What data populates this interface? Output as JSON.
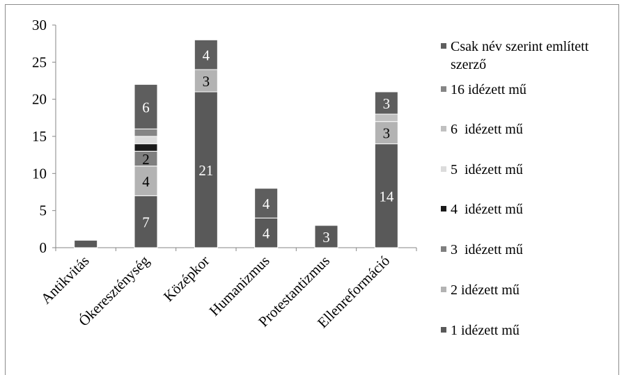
{
  "chart_data": {
    "type": "bar",
    "stacked": true,
    "categories": [
      "Antikvitás",
      "Ókereszténység",
      "Középkor",
      "Humanizmus",
      "Protestantizmus",
      "Ellenreformáció"
    ],
    "series": [
      {
        "name": "1 idézett mű",
        "color": "#595959",
        "values": [
          1,
          7,
          21,
          4,
          3,
          14
        ],
        "labels": [
          "",
          "7",
          "21",
          "4",
          "3",
          "14"
        ]
      },
      {
        "name": "2 idézett mű",
        "color": "#b3b3b3",
        "values": [
          0,
          4,
          3,
          0,
          0,
          3
        ],
        "labels": [
          "",
          "4",
          "3",
          "",
          "",
          "3"
        ]
      },
      {
        "name": "3  idézett mű",
        "color": "#7f7f7f",
        "values": [
          0,
          2,
          0,
          0,
          0,
          0
        ],
        "labels": [
          "",
          "2",
          "",
          "",
          "",
          ""
        ]
      },
      {
        "name": "4  idézett mű",
        "color": "#1a1a1a",
        "values": [
          0,
          1,
          0,
          0,
          0,
          0
        ],
        "labels": [
          "",
          "",
          "",
          "",
          "",
          ""
        ]
      },
      {
        "name": "5  idézett mű",
        "color": "#dcdcdc",
        "values": [
          0,
          1,
          0,
          0,
          0,
          0
        ],
        "labels": [
          "",
          "",
          "",
          "",
          "",
          ""
        ]
      },
      {
        "name": "6  idézett mű",
        "color": "#c0c0c0",
        "values": [
          0,
          0,
          0,
          0,
          0,
          1
        ],
        "labels": [
          "",
          "",
          "",
          "",
          "",
          ""
        ]
      },
      {
        "name": "16 idézett mű",
        "color": "#858585",
        "values": [
          0,
          1,
          0,
          0,
          0,
          0
        ],
        "labels": [
          "",
          "",
          "",
          "",
          "",
          ""
        ]
      },
      {
        "name": "Csak név szerint említett szerző",
        "color": "#5e5e5e",
        "values": [
          0,
          6,
          4,
          4,
          0,
          3
        ],
        "labels": [
          "",
          "6",
          "4",
          "4",
          "",
          "3"
        ]
      }
    ],
    "ylim": [
      0,
      30
    ],
    "yticks": [
      0,
      5,
      10,
      15,
      20,
      25,
      30
    ],
    "grid": false,
    "legend": "right",
    "title": "",
    "xlabel": "",
    "ylabel": ""
  }
}
